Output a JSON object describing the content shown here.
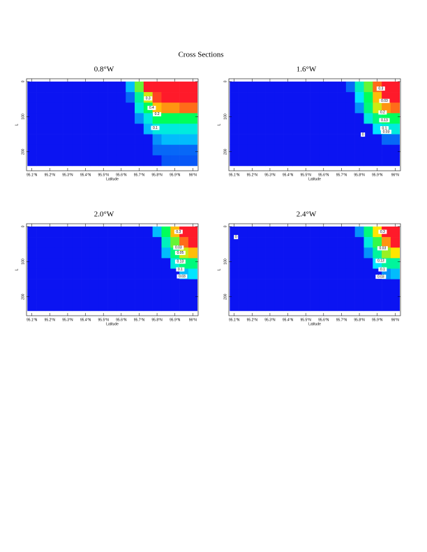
{
  "page_title": "Cross Sections",
  "chart_data": [
    {
      "type": "heatmap",
      "title": "0.8°W",
      "xlabel": "Latitude",
      "ylabel": "L",
      "x": [
        95.1,
        95.15,
        95.2,
        95.25,
        95.3,
        95.35,
        95.4,
        95.45,
        95.5,
        95.55,
        95.6,
        95.65,
        95.7,
        95.75,
        95.8,
        95.85,
        95.9,
        95.95,
        96.0
      ],
      "y": [
        15,
        45,
        75,
        105,
        135,
        165,
        195,
        225
      ],
      "z": [
        [
          0,
          0,
          0,
          0,
          0,
          0,
          0,
          0,
          0,
          0,
          0,
          0.2,
          0.6,
          1,
          1,
          1,
          1,
          1,
          1
        ],
        [
          0,
          0,
          0,
          0,
          0,
          0,
          0,
          0,
          0,
          0,
          0,
          0.1,
          0.4,
          0.7,
          0.95,
          1,
          1,
          1,
          1
        ],
        [
          0,
          0,
          0,
          0,
          0,
          0,
          0,
          0,
          0,
          0,
          0,
          0,
          0.3,
          0.5,
          0.8,
          0.85,
          0.85,
          0.9,
          0.9
        ],
        [
          0,
          0,
          0,
          0,
          0,
          0,
          0,
          0,
          0,
          0,
          0,
          0,
          0.15,
          0.3,
          0.5,
          0.5,
          0.5,
          0.5,
          0.5
        ],
        [
          0,
          0,
          0,
          0,
          0,
          0,
          0,
          0,
          0,
          0,
          0,
          0,
          0,
          0.2,
          0.3,
          0.3,
          0.3,
          0.3,
          0.3
        ],
        [
          0,
          0,
          0,
          0,
          0,
          0,
          0,
          0,
          0,
          0,
          0,
          0,
          0,
          0,
          0.15,
          0.2,
          0.2,
          0.2,
          0.2
        ],
        [
          0,
          0,
          0,
          0,
          0,
          0,
          0,
          0,
          0,
          0,
          0,
          0,
          0,
          0,
          0.1,
          0.1,
          0.1,
          0.1,
          0.1
        ],
        [
          0,
          0,
          0,
          0,
          0,
          0,
          0,
          0,
          0,
          0,
          0,
          0,
          0,
          0,
          0,
          0.08,
          0.08,
          0.08,
          0.08
        ]
      ],
      "zlim": [
        0,
        1
      ],
      "colorscale": [
        "#0b14f2",
        "#00e6ff",
        "#00ff5a",
        "#ffe600",
        "#ff1a2a"
      ],
      "xlim": [
        95.07,
        96.03
      ],
      "ylim": [
        -8,
        254
      ],
      "y_inverted": true,
      "xticks": [
        {
          "value": 95.1,
          "label": "95.1°N"
        },
        {
          "value": 95.2,
          "label": "95.2°N"
        },
        {
          "value": 95.3,
          "label": "95.3°N"
        },
        {
          "value": 95.4,
          "label": "95.4°N"
        },
        {
          "value": 95.5,
          "label": "95.5°N"
        },
        {
          "value": 95.6,
          "label": "95.6°N"
        },
        {
          "value": 95.7,
          "label": "95.7°N"
        },
        {
          "value": 95.8,
          "label": "95.8°N"
        },
        {
          "value": 95.9,
          "label": "95.9°N"
        },
        {
          "value": 96.0,
          "label": "96°N"
        }
      ],
      "yticks": [
        0,
        100,
        200
      ],
      "annotations": [
        {
          "text": "0.3",
          "x": 95.75,
          "y": 48
        },
        {
          "text": "0.4",
          "x": 95.77,
          "y": 75
        },
        {
          "text": "0.2",
          "x": 95.8,
          "y": 93
        },
        {
          "text": "0.1",
          "x": 95.79,
          "y": 132
        }
      ]
    },
    {
      "type": "heatmap",
      "title": "1.6°W",
      "xlabel": "Latitude",
      "ylabel": "L",
      "x": [
        95.1,
        95.15,
        95.2,
        95.25,
        95.3,
        95.35,
        95.4,
        95.45,
        95.5,
        95.55,
        95.6,
        95.65,
        95.7,
        95.75,
        95.8,
        95.85,
        95.9,
        95.95,
        96.0
      ],
      "y": [
        15,
        45,
        75,
        105,
        135,
        165,
        195,
        225
      ],
      "z": [
        [
          0,
          0,
          0,
          0,
          0,
          0,
          0,
          0,
          0,
          0,
          0,
          0,
          0,
          0.1,
          0.35,
          0.6,
          0.9,
          1,
          1
        ],
        [
          0,
          0,
          0,
          0,
          0,
          0,
          0,
          0,
          0,
          0,
          0,
          0,
          0,
          0,
          0.25,
          0.5,
          0.8,
          1,
          1
        ],
        [
          0,
          0,
          0,
          0,
          0,
          0,
          0,
          0,
          0,
          0,
          0,
          0,
          0,
          0,
          0.15,
          0.45,
          0.7,
          0.85,
          0.9
        ],
        [
          0,
          0,
          0,
          0,
          0,
          0,
          0,
          0,
          0,
          0,
          0,
          0,
          0,
          0,
          0,
          0.3,
          0.45,
          0.5,
          0.5
        ],
        [
          0,
          0,
          0,
          0,
          0,
          0,
          0,
          0,
          0,
          0,
          0,
          0,
          0,
          0,
          0,
          0,
          0.25,
          0.3,
          0.3
        ],
        [
          0,
          0,
          0,
          0,
          0,
          0,
          0,
          0,
          0,
          0,
          0,
          0,
          0,
          0,
          0,
          0,
          0,
          0.1,
          0.1
        ],
        [
          0,
          0,
          0,
          0,
          0,
          0,
          0,
          0,
          0,
          0,
          0,
          0,
          0,
          0,
          0,
          0,
          0,
          0,
          0
        ],
        [
          0,
          0,
          0,
          0,
          0,
          0,
          0,
          0,
          0,
          0,
          0,
          0,
          0,
          0,
          0,
          0,
          0,
          0,
          0
        ]
      ],
      "zlim": [
        0,
        1
      ],
      "colorscale": [
        "#0b14f2",
        "#00e6ff",
        "#00ff5a",
        "#ffe600",
        "#ff1a2a"
      ],
      "xlim": [
        95.07,
        96.03
      ],
      "ylim": [
        -8,
        254
      ],
      "y_inverted": true,
      "xticks": [
        {
          "value": 95.1,
          "label": "95.1°N"
        },
        {
          "value": 95.2,
          "label": "95.2°N"
        },
        {
          "value": 95.3,
          "label": "95.3°N"
        },
        {
          "value": 95.4,
          "label": "95.4°N"
        },
        {
          "value": 95.5,
          "label": "95.5°N"
        },
        {
          "value": 95.6,
          "label": "95.6°N"
        },
        {
          "value": 95.7,
          "label": "95.7°N"
        },
        {
          "value": 95.8,
          "label": "95.8°N"
        },
        {
          "value": 95.9,
          "label": "95.9°N"
        },
        {
          "value": 96.0,
          "label": "96°N"
        }
      ],
      "yticks": [
        0,
        100,
        200
      ],
      "annotations": [
        {
          "text": "0.3",
          "x": 95.92,
          "y": 20
        },
        {
          "text": "0.03",
          "x": 95.94,
          "y": 55
        },
        {
          "text": "0.2",
          "x": 95.93,
          "y": 88
        },
        {
          "text": "0.13",
          "x": 95.94,
          "y": 110
        },
        {
          "text": "0.1",
          "x": 95.94,
          "y": 133
        },
        {
          "text": "0.03",
          "x": 95.95,
          "y": 143
        },
        {
          "text": "0",
          "x": 95.82,
          "y": 151
        }
      ]
    },
    {
      "type": "heatmap",
      "title": "2.0°W",
      "xlabel": "Latitude",
      "ylabel": "L",
      "x": [
        95.1,
        95.15,
        95.2,
        95.25,
        95.3,
        95.35,
        95.4,
        95.45,
        95.5,
        95.55,
        95.6,
        95.65,
        95.7,
        95.75,
        95.8,
        95.85,
        95.9,
        95.95,
        96.0
      ],
      "y": [
        15,
        45,
        75,
        105,
        135,
        165,
        195,
        225
      ],
      "z": [
        [
          0,
          0,
          0,
          0,
          0,
          0,
          0,
          0,
          0,
          0,
          0,
          0,
          0,
          0,
          0.2,
          0.5,
          0.8,
          1,
          1
        ],
        [
          0,
          0,
          0,
          0,
          0,
          0,
          0,
          0,
          0,
          0,
          0,
          0,
          0,
          0,
          0,
          0.35,
          0.6,
          0.9,
          1
        ],
        [
          0,
          0,
          0,
          0,
          0,
          0,
          0,
          0,
          0,
          0,
          0,
          0,
          0,
          0,
          0,
          0.2,
          0.45,
          0.7,
          0.8
        ],
        [
          0,
          0,
          0,
          0,
          0,
          0,
          0,
          0,
          0,
          0,
          0,
          0,
          0,
          0,
          0,
          0,
          0.3,
          0.45,
          0.45
        ],
        [
          0,
          0,
          0,
          0,
          0,
          0,
          0,
          0,
          0,
          0,
          0,
          0,
          0,
          0,
          0,
          0,
          0,
          0.2,
          0.25
        ],
        [
          0,
          0,
          0,
          0,
          0,
          0,
          0,
          0,
          0,
          0,
          0,
          0,
          0,
          0,
          0,
          0,
          0,
          0,
          0
        ],
        [
          0,
          0,
          0,
          0,
          0,
          0,
          0,
          0,
          0,
          0,
          0,
          0,
          0,
          0,
          0,
          0,
          0,
          0,
          0
        ],
        [
          0,
          0,
          0,
          0,
          0,
          0,
          0,
          0,
          0,
          0,
          0,
          0,
          0,
          0,
          0,
          0,
          0,
          0,
          0
        ]
      ],
      "zlim": [
        0,
        1
      ],
      "colorscale": [
        "#0b14f2",
        "#00e6ff",
        "#00ff5a",
        "#ffe600",
        "#ff1a2a"
      ],
      "xlim": [
        95.07,
        96.03
      ],
      "ylim": [
        -8,
        254
      ],
      "y_inverted": true,
      "xticks": [
        {
          "value": 95.1,
          "label": "95.1°N"
        },
        {
          "value": 95.2,
          "label": "95.2°N"
        },
        {
          "value": 95.3,
          "label": "95.3°N"
        },
        {
          "value": 95.4,
          "label": "95.4°N"
        },
        {
          "value": 95.5,
          "label": "95.5°N"
        },
        {
          "value": 95.6,
          "label": "95.6°N"
        },
        {
          "value": 95.7,
          "label": "95.7°N"
        },
        {
          "value": 95.8,
          "label": "95.8°N"
        },
        {
          "value": 95.9,
          "label": "95.9°N"
        },
        {
          "value": 96.0,
          "label": "96°N"
        }
      ],
      "yticks": [
        0,
        100,
        200
      ],
      "annotations": [
        {
          "text": "0.3",
          "x": 95.92,
          "y": 15
        },
        {
          "text": "0.03",
          "x": 95.92,
          "y": 60
        },
        {
          "text": "0.05",
          "x": 95.93,
          "y": 75
        },
        {
          "text": "0.13",
          "x": 95.93,
          "y": 100
        },
        {
          "text": "0.1",
          "x": 95.93,
          "y": 122
        },
        {
          "text": "0.03",
          "x": 95.94,
          "y": 142
        }
      ]
    },
    {
      "type": "heatmap",
      "title": "2.4°W",
      "xlabel": "Latitude",
      "ylabel": "L",
      "x": [
        95.1,
        95.15,
        95.2,
        95.25,
        95.3,
        95.35,
        95.4,
        95.45,
        95.5,
        95.55,
        95.6,
        95.65,
        95.7,
        95.75,
        95.8,
        95.85,
        95.9,
        95.95,
        96.0
      ],
      "y": [
        15,
        45,
        75,
        105,
        135,
        165,
        195,
        225
      ],
      "z": [
        [
          0,
          0,
          0,
          0,
          0,
          0,
          0,
          0,
          0,
          0,
          0,
          0,
          0,
          0,
          0.15,
          0.45,
          0.75,
          1,
          1
        ],
        [
          0,
          0,
          0,
          0,
          0,
          0,
          0,
          0,
          0,
          0,
          0,
          0,
          0,
          0,
          0,
          0.3,
          0.55,
          0.85,
          1
        ],
        [
          0,
          0,
          0,
          0,
          0,
          0,
          0,
          0,
          0,
          0,
          0,
          0,
          0,
          0,
          0,
          0.15,
          0.4,
          0.65,
          0.75
        ],
        [
          0,
          0,
          0,
          0,
          0,
          0,
          0,
          0,
          0,
          0,
          0,
          0,
          0,
          0,
          0,
          0,
          0.25,
          0.4,
          0.4
        ],
        [
          0,
          0,
          0,
          0,
          0,
          0,
          0,
          0,
          0,
          0,
          0,
          0,
          0,
          0,
          0,
          0,
          0,
          0.15,
          0.2
        ],
        [
          0,
          0,
          0,
          0,
          0,
          0,
          0,
          0,
          0,
          0,
          0,
          0,
          0,
          0,
          0,
          0,
          0,
          0,
          0
        ],
        [
          0,
          0,
          0,
          0,
          0,
          0,
          0,
          0,
          0,
          0,
          0,
          0,
          0,
          0,
          0,
          0,
          0,
          0,
          0
        ],
        [
          0,
          0,
          0,
          0,
          0,
          0,
          0,
          0,
          0,
          0,
          0,
          0,
          0,
          0,
          0,
          0,
          0,
          0,
          0
        ]
      ],
      "zlim": [
        0,
        1
      ],
      "colorscale": [
        "#0b14f2",
        "#00e6ff",
        "#00ff5a",
        "#ffe600",
        "#ff1a2a"
      ],
      "xlim": [
        95.07,
        96.03
      ],
      "ylim": [
        -8,
        254
      ],
      "y_inverted": true,
      "xticks": [
        {
          "value": 95.1,
          "label": "95.1°N"
        },
        {
          "value": 95.2,
          "label": "95.2°N"
        },
        {
          "value": 95.3,
          "label": "95.3°N"
        },
        {
          "value": 95.4,
          "label": "95.4°N"
        },
        {
          "value": 95.5,
          "label": "95.5°N"
        },
        {
          "value": 95.6,
          "label": "95.6°N"
        },
        {
          "value": 95.7,
          "label": "95.7°N"
        },
        {
          "value": 95.8,
          "label": "95.8°N"
        },
        {
          "value": 95.9,
          "label": "95.9°N"
        },
        {
          "value": 96.0,
          "label": "96°N"
        }
      ],
      "yticks": [
        0,
        100,
        200
      ],
      "annotations": [
        {
          "text": "0",
          "x": 95.11,
          "y": 30
        },
        {
          "text": "0.3",
          "x": 95.93,
          "y": 15
        },
        {
          "text": "0.03",
          "x": 95.93,
          "y": 62
        },
        {
          "text": "0.13",
          "x": 95.92,
          "y": 98
        },
        {
          "text": "0.1",
          "x": 95.93,
          "y": 122
        },
        {
          "text": "0.03",
          "x": 95.92,
          "y": 143
        }
      ]
    }
  ]
}
